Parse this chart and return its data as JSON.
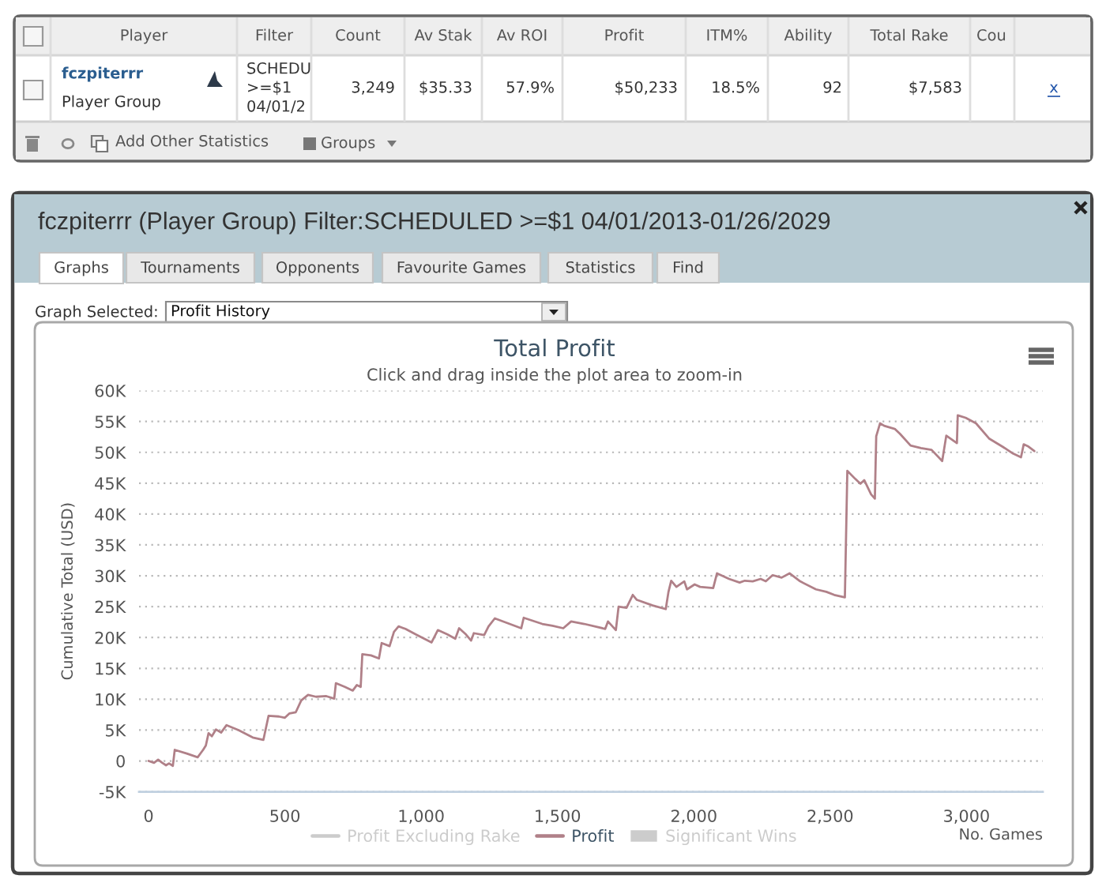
{
  "chart_data": [
    {
      "type": "other",
      "annotations": [
        "Player",
        "Filter",
        "Count",
        "Av Stak",
        "Av ROI",
        "Profit",
        "ITM%",
        "Ability",
        "Total Rake",
        "Cou",
        "fczpiterrr",
        "Player Group",
        "SCHEDU",
        ">=$1",
        "04/01/2",
        "3,249",
        "$35.33",
        "57.9%",
        "$50,233",
        "18.5%",
        "92",
        "$7,583",
        "x",
        "Add Other Statistics",
        "Groups"
      ]
    },
    {
      "type": "line",
      "title": "Total Profit",
      "subtitle": "Click and drag inside the plot area to zoom-in",
      "xlabel": "No. Games",
      "ylabel": "Cumulative Total (USD)",
      "annotations": [
        "fczpiterrr (Player Group) Filter:SCHEDULED >=$1 04/01/2013-01/26/2029",
        "Graphs",
        "Tournaments",
        "Opponents",
        "Favourite Games",
        "Statistics",
        "Find",
        "Graph Selected:",
        "Profit History"
      ],
      "series": [
        {
          "name": "Profit Excluding Rake",
          "type": "line",
          "color": "#cccccc"
        },
        {
          "name": "Profit",
          "type": "line",
          "color": "#b08088",
          "x": [
            0,
            20,
            35,
            50,
            64,
            75,
            89,
            96,
            140,
            180,
            200,
            210,
            220,
            232,
            247,
            266,
            286,
            330,
            382,
            421,
            440,
            478,
            500,
            517,
            540,
            560,
            585,
            614,
            652,
            681,
            687,
            720,
            749,
            764,
            778,
            784,
            816,
            845,
            855,
            884,
            900,
            917,
            942,
            980,
            1038,
            1061,
            1096,
            1125,
            1139,
            1164,
            1183,
            1193,
            1231,
            1247,
            1270,
            1367,
            1376,
            1444,
            1482,
            1521,
            1550,
            1598,
            1675,
            1685,
            1714,
            1724,
            1753,
            1776,
            1791,
            1849,
            1897,
            1907,
            1917,
            1936,
            1965,
            1975,
            2003,
            2023,
            2071,
            2085,
            2129,
            2168,
            2187,
            2216,
            2245,
            2264,
            2289,
            2322,
            2351,
            2390,
            2448,
            2486,
            2515,
            2554,
            2563,
            2592,
            2611,
            2625,
            2650,
            2664,
            2669,
            2683,
            2698,
            2737,
            2756,
            2795,
            2833,
            2872,
            2911,
            2926,
            2965,
            2968,
            2997,
            3035,
            3084,
            3133,
            3171,
            3200,
            3210,
            3225,
            3249
          ],
          "values": [
            0,
            -300,
            200,
            -300,
            -700,
            -400,
            -800,
            1800,
            1200,
            600,
            1800,
            2500,
            4500,
            4000,
            5100,
            4600,
            5800,
            5000,
            3800,
            3400,
            7300,
            7200,
            7000,
            7700,
            7900,
            9800,
            10700,
            10400,
            10500,
            10100,
            12600,
            12000,
            11400,
            12300,
            12000,
            17300,
            17100,
            16600,
            19100,
            18600,
            20900,
            21800,
            21400,
            20500,
            19200,
            21200,
            20500,
            19800,
            21500,
            20500,
            19500,
            20700,
            20400,
            21800,
            23100,
            21500,
            23200,
            22200,
            21900,
            21500,
            22600,
            22200,
            21400,
            22600,
            21200,
            25000,
            24800,
            26900,
            26100,
            25200,
            24600,
            27400,
            29200,
            28200,
            29100,
            27800,
            28600,
            28200,
            28000,
            30400,
            29500,
            28900,
            29200,
            29100,
            29500,
            29100,
            30100,
            29700,
            30400,
            29100,
            27800,
            27400,
            26900,
            26500,
            47000,
            45700,
            44900,
            45500,
            43200,
            42500,
            52600,
            54700,
            54300,
            53800,
            53000,
            51100,
            50700,
            50400,
            48600,
            52700,
            51500,
            56000,
            55600,
            54700,
            52200,
            50900,
            49800,
            49200,
            51300,
            51000,
            50200
          ]
        },
        {
          "name": "Significant Wins",
          "type": "bar",
          "color": "#cccccc"
        }
      ],
      "xlim": [
        -35,
        3280
      ],
      "ylim": [
        -5000,
        60000
      ],
      "xticks": [
        0,
        500,
        {
          "value": 1000,
          "label": "1,000"
        },
        {
          "value": 1500,
          "label": "1,500"
        },
        {
          "value": 2000,
          "label": "2,000"
        },
        {
          "value": 2500,
          "label": "2,500"
        },
        {
          "value": 3000,
          "label": "3,000"
        }
      ],
      "yticks": [
        {
          "value": -5000,
          "label": "-5K"
        },
        0,
        {
          "value": 5000,
          "label": "5K"
        },
        {
          "value": 10000,
          "label": "10K"
        },
        {
          "value": 15000,
          "label": "15K"
        },
        {
          "value": 20000,
          "label": "20K"
        },
        {
          "value": 25000,
          "label": "25K"
        },
        {
          "value": 30000,
          "label": "30K"
        },
        {
          "value": 35000,
          "label": "35K"
        },
        {
          "value": 40000,
          "label": "40K"
        },
        {
          "value": 45000,
          "label": "45K"
        },
        {
          "value": 50000,
          "label": "50K"
        },
        {
          "value": 55000,
          "label": "55K"
        },
        {
          "value": 60000,
          "label": "60K"
        }
      ],
      "grid": "y",
      "legend": "bottom",
      "line_style": "solid"
    }
  ]
}
